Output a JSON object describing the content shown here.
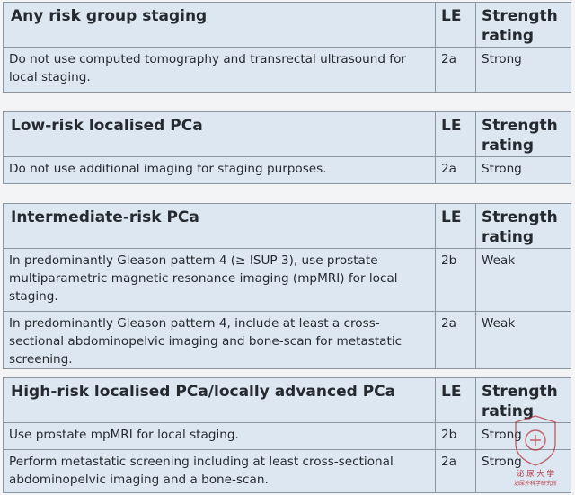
{
  "tables": [
    {
      "title": "Any risk group staging",
      "le_header": "LE",
      "strength_header": "Strength rating",
      "rows": [
        {
          "text": "Do not use computed tomography and transrectal ultrasound for local staging.",
          "le": "2a",
          "strength": "Strong"
        }
      ]
    },
    {
      "title": "Low-risk localised PCa",
      "le_header": "LE",
      "strength_header": "Strength rating",
      "rows": [
        {
          "text": "Do not use additional imaging for staging purposes.",
          "le": "2a",
          "strength": "Strong"
        }
      ]
    },
    {
      "title": "Intermediate-risk PCa",
      "le_header": "LE",
      "strength_header": "Strength rating",
      "rows": [
        {
          "text": "In predominantly Gleason pattern 4 (≥ ISUP 3), use prostate multiparametric magnetic resonance imaging (mpMRI) for local staging.",
          "le": "2b",
          "strength": "Weak"
        },
        {
          "text": "In predominantly Gleason pattern 4, include at least a cross-sectional abdominopelvic imaging and bone-scan for metastatic screening.",
          "le": "2a",
          "strength": "Weak"
        }
      ]
    },
    {
      "title": "High-risk localised PCa/locally advanced PCa",
      "le_header": "LE",
      "strength_header": "Strength rating",
      "rows": [
        {
          "text": "Use prostate mpMRI for local staging.",
          "le": "2b",
          "strength": "Strong"
        },
        {
          "text": "Perform metastatic screening including at least cross-sectional abdominopelvic imaging and a bone-scan.",
          "le": "2a",
          "strength": "Strong"
        }
      ]
    }
  ],
  "watermark": {
    "text": "泌 尿 大 学",
    "subtext": "泌尿外科学研究所",
    "icon": "university-seal-icon",
    "color": "#b4232c"
  }
}
